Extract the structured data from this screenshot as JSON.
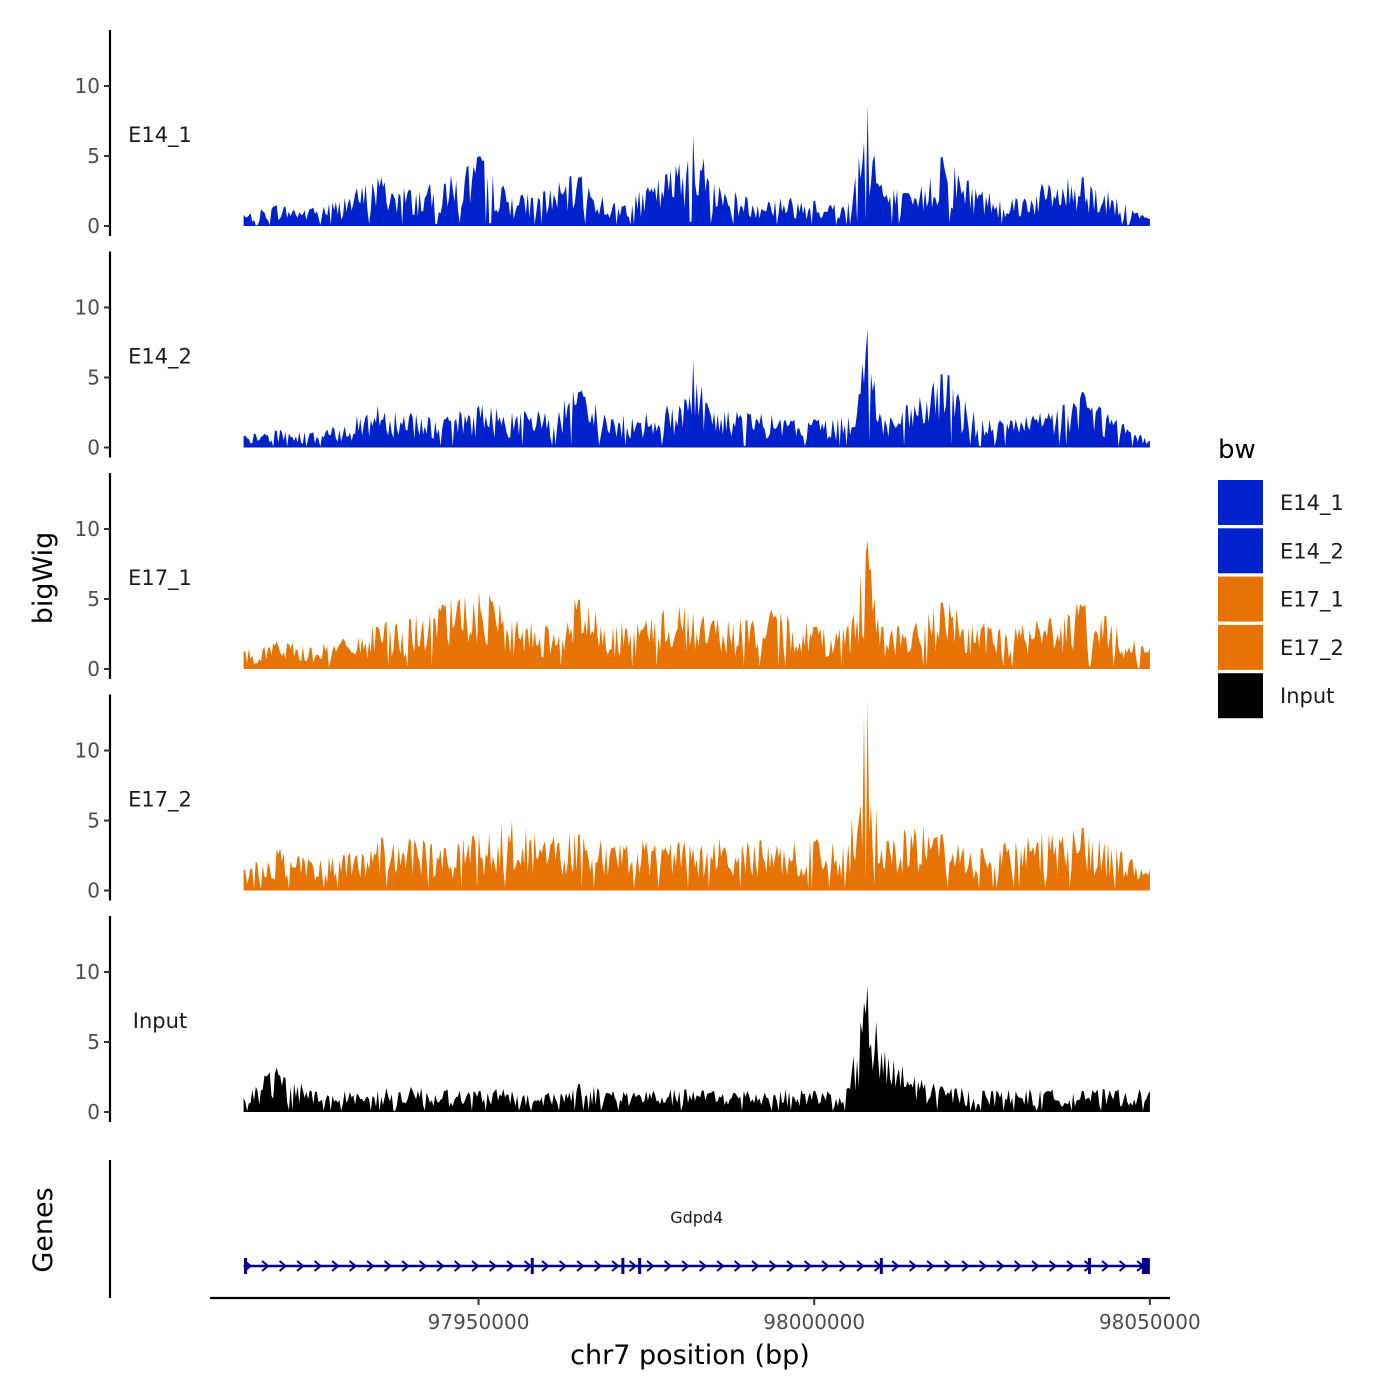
{
  "chart_data": {
    "type": "area",
    "chromosome": "chr7",
    "xlabel": "chr7 position (bp)",
    "ylabel": "bigWig",
    "genes_track_label": "Genes",
    "xlim": [
      97910000,
      98053000
    ],
    "data_range": [
      97915000,
      98050000
    ],
    "x_ticks": [
      97950000,
      98000000,
      98050000
    ],
    "x_tick_labels": [
      "97950000",
      "98000000",
      "98050000"
    ],
    "ylim": [
      0,
      14
    ],
    "y_ticks": [
      0,
      5,
      10
    ],
    "y_tick_labels": [
      "0",
      "5",
      "10"
    ],
    "legend": {
      "title": "bw",
      "position": "right",
      "entries": [
        {
          "label": "E14_1",
          "color": "#0022cc"
        },
        {
          "label": "E14_2",
          "color": "#0022cc"
        },
        {
          "label": "E17_1",
          "color": "#e87305"
        },
        {
          "label": "E17_2",
          "color": "#e87305"
        },
        {
          "label": "Input",
          "color": "#000000"
        }
      ]
    },
    "series": [
      {
        "name": "E14_1",
        "color": "#0022cc",
        "x": [
          97915000,
          97920000,
          97925000,
          97930000,
          97935000,
          97940000,
          97945000,
          97950000,
          97955000,
          97960000,
          97965000,
          97970000,
          97975000,
          97980000,
          97982000,
          97985000,
          97990000,
          97995000,
          98000000,
          98005000,
          98008000,
          98010000,
          98015000,
          98019000,
          98025000,
          98030000,
          98035000,
          98040000,
          98045000,
          98050000
        ],
        "values": [
          0.8,
          1.5,
          1.2,
          2.0,
          3.5,
          2.5,
          3.0,
          5.0,
          2.0,
          2.5,
          3.5,
          1.5,
          2.5,
          4.5,
          6.5,
          3.0,
          2.0,
          2.0,
          1.8,
          1.5,
          8.8,
          3.0,
          2.0,
          5.0,
          2.5,
          2.0,
          3.0,
          3.5,
          2.0,
          0.5
        ]
      },
      {
        "name": "E14_2",
        "color": "#0022cc",
        "x": [
          97915000,
          97920000,
          97925000,
          97930000,
          97935000,
          97940000,
          97945000,
          97950000,
          97955000,
          97960000,
          97965000,
          97970000,
          97975000,
          97980000,
          97982000,
          97985000,
          97990000,
          97995000,
          98000000,
          98005000,
          98008000,
          98010000,
          98015000,
          98019000,
          98025000,
          98030000,
          98035000,
          98040000,
          98045000,
          98050000
        ],
        "values": [
          0.8,
          1.2,
          1.0,
          1.5,
          3.0,
          2.5,
          2.0,
          3.0,
          2.5,
          2.5,
          4.0,
          2.0,
          2.5,
          3.0,
          6.3,
          2.5,
          2.5,
          2.0,
          2.0,
          2.0,
          8.6,
          2.0,
          3.0,
          5.3,
          2.0,
          2.0,
          2.5,
          4.0,
          2.0,
          0.5
        ]
      },
      {
        "name": "E17_1",
        "color": "#e87305",
        "x": [
          97915000,
          97920000,
          97925000,
          97930000,
          97935000,
          97940000,
          97945000,
          97950000,
          97955000,
          97960000,
          97965000,
          97970000,
          97975000,
          97980000,
          97982000,
          97985000,
          97990000,
          97995000,
          98000000,
          98005000,
          98008000,
          98010000,
          98015000,
          98019000,
          98025000,
          98030000,
          98035000,
          98040000,
          98045000,
          98050000
        ],
        "values": [
          1.2,
          2.0,
          1.5,
          2.0,
          3.0,
          3.5,
          4.5,
          5.5,
          3.5,
          3.0,
          5.0,
          3.0,
          3.5,
          4.5,
          4.0,
          3.5,
          3.5,
          4.0,
          3.0,
          3.0,
          9.3,
          3.0,
          3.0,
          4.8,
          3.0,
          3.0,
          3.5,
          4.5,
          3.0,
          1.5
        ]
      },
      {
        "name": "E17_2",
        "color": "#e87305",
        "x": [
          97915000,
          97920000,
          97925000,
          97930000,
          97935000,
          97940000,
          97945000,
          97950000,
          97955000,
          97960000,
          97965000,
          97970000,
          97975000,
          97980000,
          97982000,
          97985000,
          97990000,
          97995000,
          98000000,
          98005000,
          98008000,
          98010000,
          98015000,
          98019000,
          98025000,
          98030000,
          98035000,
          98040000,
          98045000,
          98050000
        ],
        "values": [
          1.5,
          3.0,
          2.0,
          2.5,
          3.5,
          3.5,
          3.0,
          4.0,
          5.0,
          3.5,
          4.0,
          3.0,
          3.5,
          3.5,
          3.0,
          3.5,
          3.5,
          3.0,
          3.5,
          3.0,
          13.8,
          3.0,
          4.5,
          4.0,
          3.0,
          3.5,
          4.0,
          4.5,
          3.0,
          1.5
        ]
      },
      {
        "name": "Input",
        "color": "#000000",
        "x": [
          97915000,
          97920000,
          97925000,
          97930000,
          97935000,
          97940000,
          97945000,
          97950000,
          97955000,
          97960000,
          97965000,
          97970000,
          97975000,
          97980000,
          97982000,
          97985000,
          97990000,
          97995000,
          98000000,
          98005000,
          98008000,
          98010000,
          98015000,
          98019000,
          98025000,
          98030000,
          98035000,
          98040000,
          98045000,
          98050000
        ],
        "values": [
          1.0,
          3.2,
          1.5,
          1.5,
          1.5,
          1.8,
          1.5,
          1.5,
          1.5,
          1.2,
          2.0,
          1.5,
          1.5,
          1.5,
          1.5,
          1.5,
          1.5,
          1.5,
          1.5,
          1.5,
          9.2,
          4.3,
          2.5,
          1.8,
          1.5,
          1.5,
          1.5,
          1.5,
          1.5,
          1.5
        ]
      }
    ],
    "genes": [
      {
        "name": "Gdpd4",
        "start": 97915000,
        "end": 98050000,
        "strand": "+",
        "color": "#00008b"
      }
    ]
  }
}
